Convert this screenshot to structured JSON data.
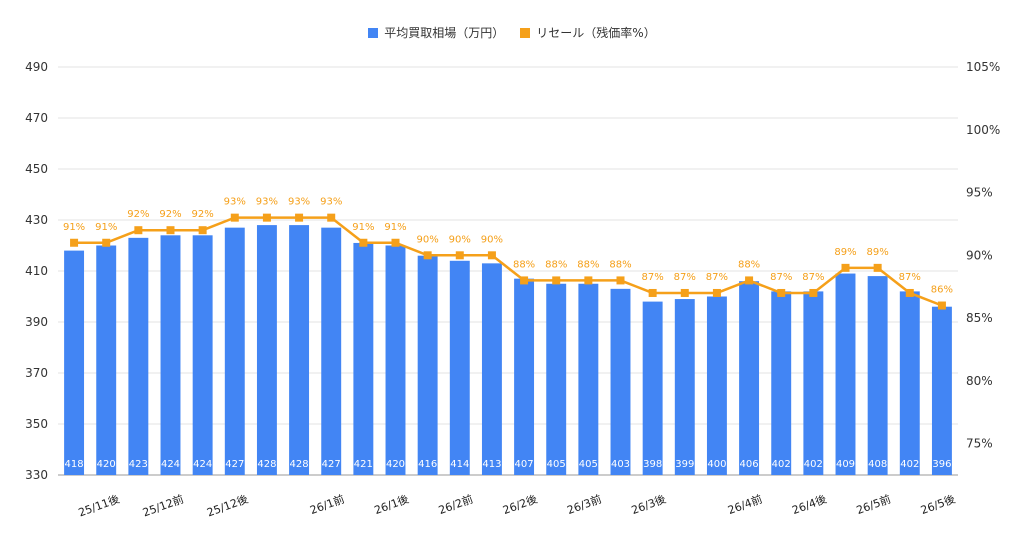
{
  "chart_data": {
    "type": "bar",
    "categories": [
      "",
      "25/11後",
      "",
      "25/12前",
      "",
      "25/12後",
      "",
      "",
      "26/1前",
      "",
      "26/1後",
      "",
      "26/2前",
      "",
      "26/2後",
      "",
      "26/3前",
      "",
      "26/3後",
      "",
      "",
      "26/4前",
      "",
      "26/4後",
      "",
      "26/5前",
      "",
      "26/5後"
    ],
    "series": [
      {
        "name": "平均買取相場（万円）",
        "axis": "left",
        "type": "bar",
        "values": [
          418,
          420,
          423,
          424,
          424,
          427,
          428,
          428,
          427,
          421,
          420,
          416,
          414,
          413,
          407,
          405,
          405,
          403,
          398,
          399,
          400,
          406,
          402,
          402,
          409,
          408,
          402,
          396
        ],
        "color": "#4285F4"
      },
      {
        "name": "リセール（残価率%）",
        "axis": "right",
        "type": "line",
        "values": [
          91,
          91,
          92,
          92,
          92,
          93,
          93,
          93,
          93,
          91,
          91,
          90,
          90,
          90,
          88,
          88,
          88,
          88,
          87,
          87,
          87,
          88,
          87,
          87,
          89,
          89,
          87,
          86
        ],
        "color": "#F5A01A"
      }
    ],
    "y_left": {
      "min": 330,
      "max": 490,
      "ticks": [
        330,
        350,
        370,
        390,
        410,
        430,
        450,
        470,
        490
      ]
    },
    "y_right": {
      "min": 72.5,
      "max": 105,
      "ticks": [
        75,
        80,
        85,
        90,
        95,
        100,
        105
      ],
      "tick_labels": [
        "75%",
        "80%",
        "85%",
        "90%",
        "95%",
        "100%",
        "105%"
      ]
    },
    "legend": "top-center",
    "grid": true
  }
}
